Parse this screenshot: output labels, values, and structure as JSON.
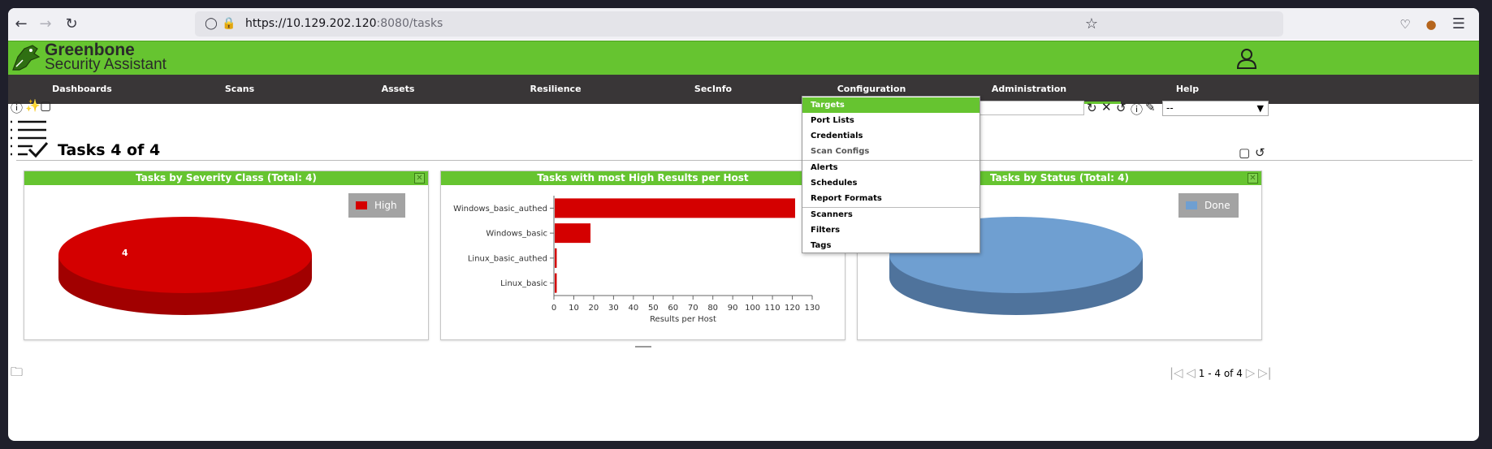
{
  "browser": {
    "url_host": "https://10.129.202.120",
    "url_rest": ":8080/tasks"
  },
  "header": {
    "logo_title": "Greenbone",
    "logo_subtitle": "Security Assistant"
  },
  "nav": {
    "items": [
      {
        "label": "Dashboards"
      },
      {
        "label": "Scans"
      },
      {
        "label": "Assets"
      },
      {
        "label": "Resilience"
      },
      {
        "label": "SecInfo"
      },
      {
        "label": "Configuration"
      },
      {
        "label": "Administration"
      },
      {
        "label": "Help"
      }
    ]
  },
  "config_menu": {
    "items": [
      {
        "label": "Targets"
      },
      {
        "label": "Port Lists"
      },
      {
        "label": "Credentials"
      },
      {
        "label": "Scan Configs"
      },
      {
        "label": "Alerts"
      },
      {
        "label": "Schedules"
      },
      {
        "label": "Report Formats"
      },
      {
        "label": "Scanners"
      },
      {
        "label": "Filters"
      },
      {
        "label": "Tags"
      }
    ]
  },
  "page": {
    "title": "Tasks 4 of 4",
    "filter_select_value": "--",
    "pager_text": "1 - 4 of 4"
  },
  "colors": {
    "brand_green": "#66c430",
    "nav_dark": "#393637",
    "high_red": "#d40000",
    "done_blue": "#6f9fd1"
  },
  "panels": [
    {
      "title": "Tasks by Severity Class (Total: 4)",
      "legend": "High",
      "slice_label": "4"
    },
    {
      "title": "Tasks with most High Results per Host"
    },
    {
      "title": "Tasks by Status (Total: 4)",
      "legend": "Done"
    }
  ],
  "chart_data": [
    {
      "type": "pie",
      "title": "Tasks by Severity Class (Total: 4)",
      "categories": [
        "High"
      ],
      "values": [
        4
      ],
      "legend_position": "top-right"
    },
    {
      "type": "bar",
      "orientation": "horizontal",
      "title": "Tasks with most High Results per Host",
      "categories": [
        "Windows_basic_authed",
        "Windows_basic",
        "Linux_basic_authed",
        "Linux_basic"
      ],
      "values": [
        121,
        18,
        1,
        1
      ],
      "xlabel": "Results per Host",
      "xlim": [
        0,
        130
      ],
      "xticks": [
        0,
        10,
        20,
        30,
        40,
        50,
        60,
        70,
        80,
        90,
        100,
        110,
        120,
        130
      ]
    },
    {
      "type": "pie",
      "title": "Tasks by Status (Total: 4)",
      "categories": [
        "Done"
      ],
      "values": [
        4
      ],
      "legend_position": "top-right"
    }
  ]
}
